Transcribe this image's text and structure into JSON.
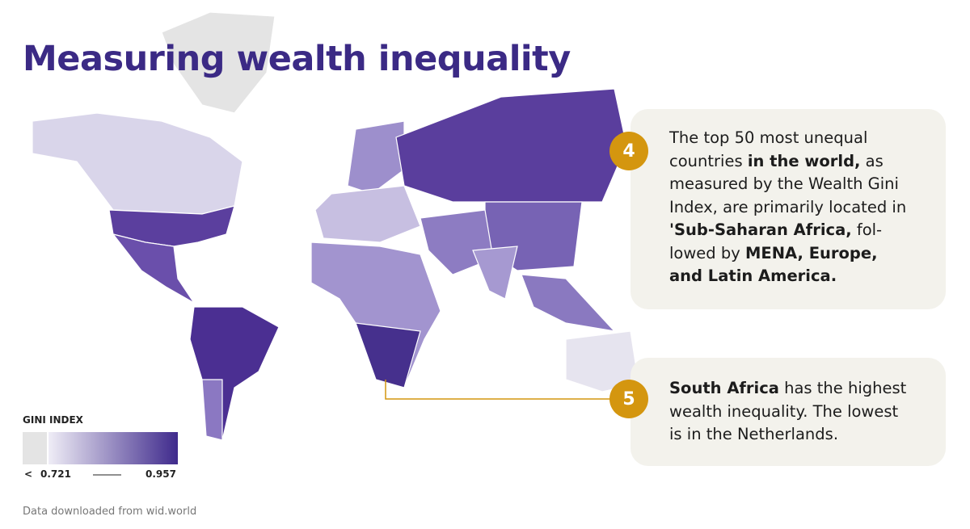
{
  "header": {
    "title": "Measuring wealth inequality"
  },
  "legend": {
    "title": "GINI INDEX",
    "below_symbol": "<",
    "min": 0.721,
    "max": 0.957
  },
  "callouts": [
    {
      "number": "4",
      "lines": [
        [
          {
            "text": "The top 50 most unequal",
            "bold": false
          }
        ],
        [
          {
            "text": "countries ",
            "bold": false
          },
          {
            "text": "in the world,",
            "bold": true
          },
          {
            "text": " as",
            "bold": false
          }
        ],
        [
          {
            "text": "measured by the Wealth Gini",
            "bold": false
          }
        ],
        [
          {
            "text": "Index, are primarily located in",
            "bold": false
          }
        ],
        [
          {
            "text": "'Sub-Saharan Africa,",
            "bold": true
          },
          {
            "text": " fol-",
            "bold": false
          }
        ],
        [
          {
            "text": "lowed by ",
            "bold": false
          },
          {
            "text": "MENA, Europe,",
            "bold": true
          }
        ],
        [
          {
            "text": "and Latin America.",
            "bold": true
          }
        ]
      ]
    },
    {
      "number": "5",
      "lines": [
        [
          {
            "text": "South Africa",
            "bold": true
          },
          {
            "text": " has the highest",
            "bold": false
          }
        ],
        [
          {
            "text": "wealth inequality. The lowest",
            "bold": false
          }
        ],
        [
          {
            "text": "is in the Netherlands.",
            "bold": false
          }
        ]
      ]
    }
  ],
  "footer": {
    "source": "Data downloaded from wid.world"
  }
}
